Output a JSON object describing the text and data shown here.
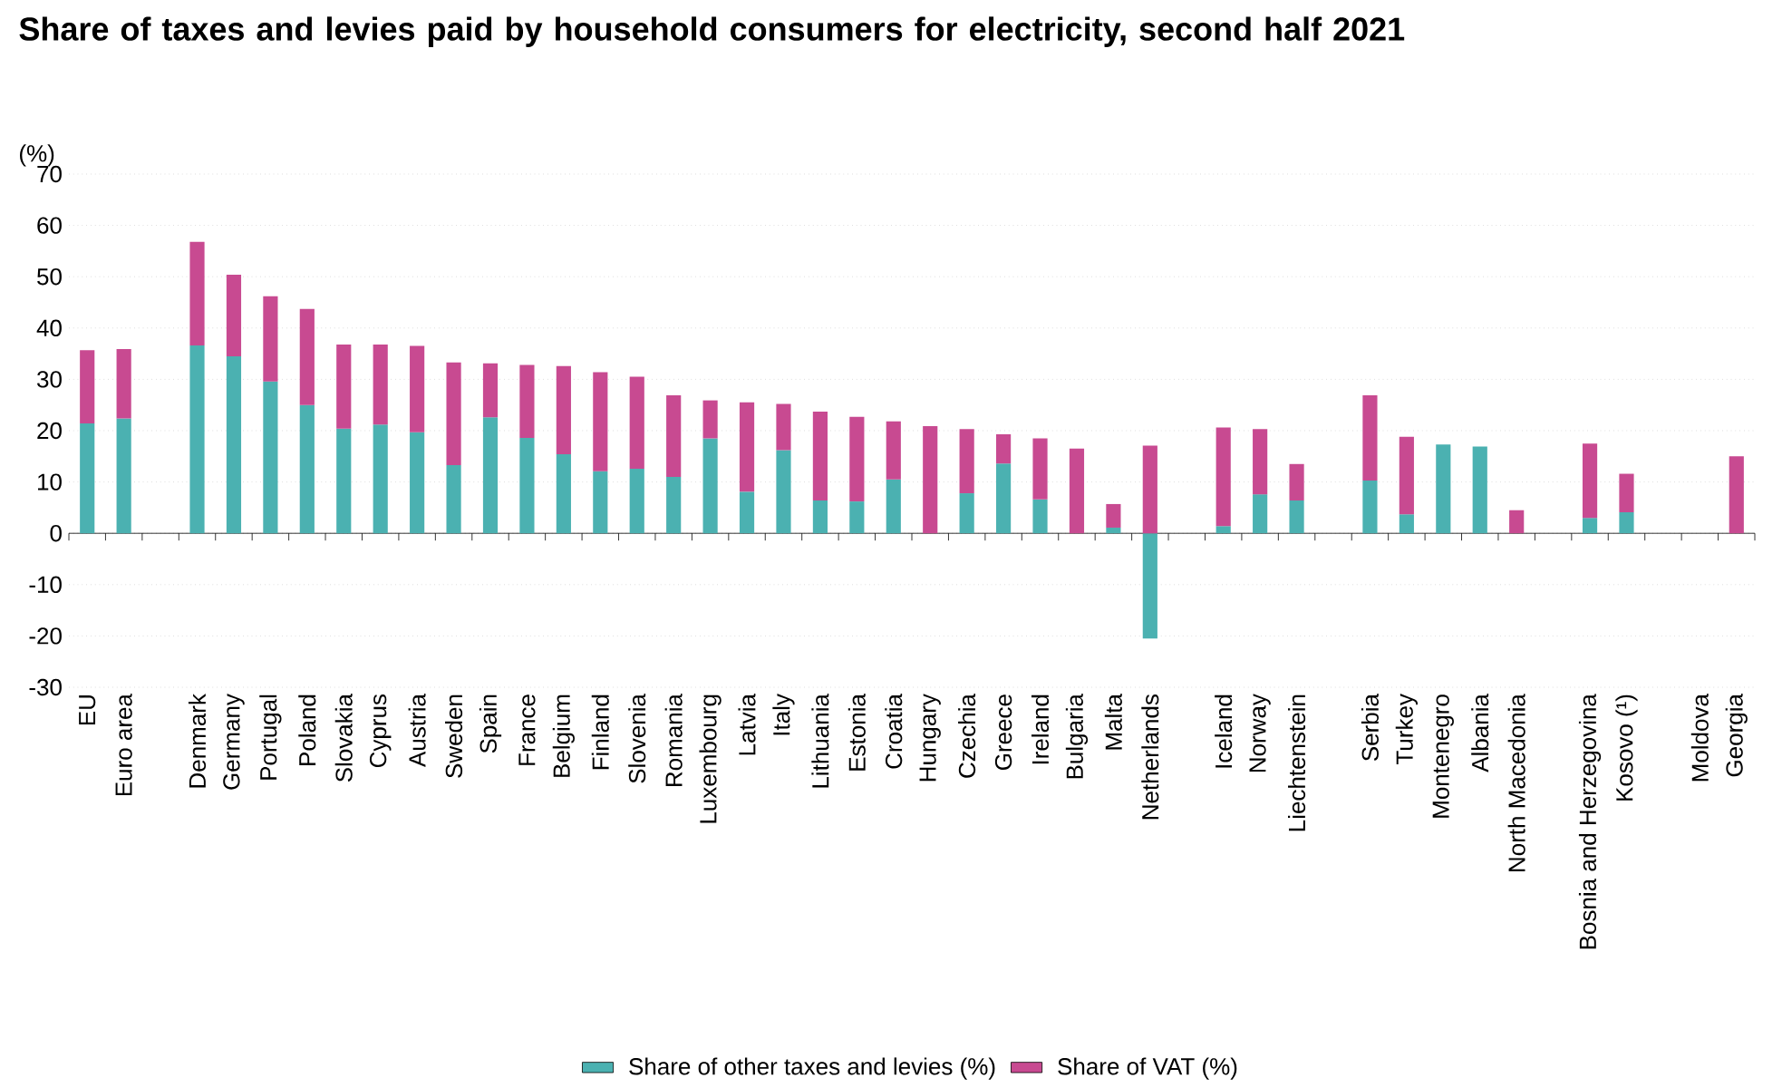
{
  "chart_data": {
    "type": "bar",
    "stacked": true,
    "title": "Share of taxes and levies paid by household consumers for electricity, second half 2021",
    "ylabel": "(%)",
    "categories": [
      "EU",
      "Euro area",
      null,
      "Denmark",
      "Germany",
      "Portugal",
      "Poland",
      "Slovakia",
      "Cyprus",
      "Austria",
      "Sweden",
      "Spain",
      "France",
      "Belgium",
      "Finland",
      "Slovenia",
      "Romania",
      "Luxembourg",
      "Latvia",
      "Italy",
      "Lithuania",
      "Estonia",
      "Croatia",
      "Hungary",
      "Czechia",
      "Greece",
      "Ireland",
      "Bulgaria",
      "Malta",
      "Netherlands",
      null,
      "Iceland",
      "Norway",
      "Liechtenstein",
      null,
      "Serbia",
      "Turkey",
      "Montenegro",
      "Albania",
      "North Macedonia",
      null,
      "Bosnia and Herzegovina",
      "Kosovo (¹)",
      null,
      "Moldova",
      "Georgia"
    ],
    "series": [
      {
        "name": "Share of other taxes and levies (%)",
        "color": "#4bb1b1",
        "values": [
          21.4,
          22.4,
          null,
          36.6,
          34.5,
          29.6,
          25.0,
          20.4,
          21.2,
          19.7,
          13.3,
          22.6,
          18.6,
          15.4,
          12.1,
          12.6,
          11.0,
          18.5,
          8.1,
          16.2,
          6.4,
          6.2,
          10.5,
          0,
          7.8,
          13.6,
          6.6,
          0,
          1.1,
          -20.5,
          null,
          1.4,
          7.6,
          6.4,
          null,
          10.3,
          3.7,
          17.3,
          16.9,
          0,
          null,
          3.0,
          4.1,
          null,
          null,
          0
        ]
      },
      {
        "name": "Share of VAT (%)",
        "color": "#c84a91",
        "values": [
          14.3,
          13.5,
          null,
          20.2,
          15.9,
          16.6,
          18.7,
          16.4,
          15.6,
          16.8,
          20.0,
          10.5,
          14.2,
          17.2,
          19.3,
          17.9,
          15.9,
          7.4,
          17.4,
          9.0,
          17.3,
          16.5,
          11.3,
          20.9,
          12.5,
          5.7,
          11.9,
          16.5,
          4.6,
          17.1,
          null,
          19.2,
          12.7,
          7.1,
          null,
          16.6,
          15.1,
          0,
          0,
          4.5,
          null,
          14.5,
          7.5,
          null,
          null,
          15.0
        ]
      }
    ],
    "ylim": [
      -30,
      70
    ],
    "yticks": [
      -30,
      -20,
      -10,
      0,
      10,
      20,
      30,
      40,
      50,
      60,
      70
    ],
    "grid": "y",
    "legend": "bottom"
  }
}
